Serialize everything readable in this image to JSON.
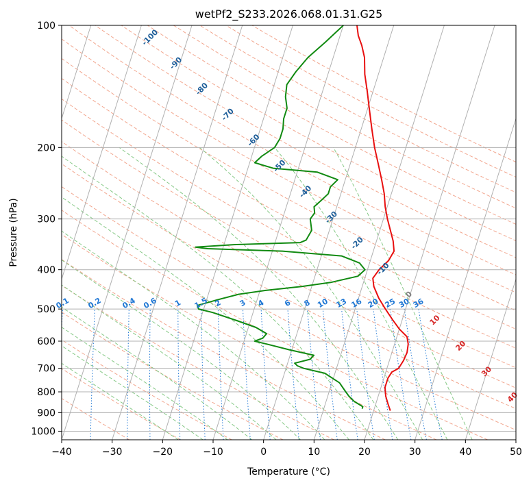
{
  "chart_data": {
    "type": "line",
    "title": "wetPf2_S233.2026.068.01.31.G25",
    "xlabel": "Temperature (°C)",
    "ylabel": "Pressure (hPa)",
    "xlim": [
      -40,
      50
    ],
    "ylim": [
      1050,
      100
    ],
    "y_scale": "log",
    "x_ticks": [
      -40,
      -30,
      -20,
      -10,
      0,
      10,
      20,
      30,
      40,
      50
    ],
    "y_ticks": [
      100,
      200,
      300,
      400,
      500,
      600,
      700,
      800,
      900,
      1000
    ],
    "grid": true,
    "skew_t": true,
    "series": [
      {
        "role": "temperature",
        "color": "#e81010",
        "points": [
          [
            23.3,
            890
          ],
          [
            22.5,
            860
          ],
          [
            21.5,
            820
          ],
          [
            20.8,
            780
          ],
          [
            20.8,
            740
          ],
          [
            21.2,
            715
          ],
          [
            22.3,
            700
          ],
          [
            22.8,
            670
          ],
          [
            23.0,
            640
          ],
          [
            22.7,
            610
          ],
          [
            22.0,
            585
          ],
          [
            20.0,
            560
          ],
          [
            18.0,
            530
          ],
          [
            16.0,
            500
          ],
          [
            14.0,
            470
          ],
          [
            12.3,
            440
          ],
          [
            11.6,
            420
          ],
          [
            12.3,
            400
          ],
          [
            13.6,
            380
          ],
          [
            14.1,
            360
          ],
          [
            13.3,
            340
          ],
          [
            12.1,
            320
          ],
          [
            10.8,
            300
          ],
          [
            9.6,
            280
          ],
          [
            8.6,
            260
          ],
          [
            7.2,
            240
          ],
          [
            5.6,
            220
          ],
          [
            3.8,
            200
          ],
          [
            2.1,
            180
          ],
          [
            0.3,
            160
          ],
          [
            -1.2,
            145
          ],
          [
            -2.7,
            132
          ],
          [
            -3.8,
            120
          ],
          [
            -5.1,
            112
          ],
          [
            -6.4,
            106
          ],
          [
            -7.3,
            100
          ]
        ]
      },
      {
        "role": "dewpoint",
        "color": "#118a11",
        "points": [
          [
            17.6,
            880
          ],
          [
            17.6,
            870
          ],
          [
            16.8,
            860
          ],
          [
            15.6,
            845
          ],
          [
            14.2,
            820
          ],
          [
            13.3,
            800
          ],
          [
            11.5,
            760
          ],
          [
            8.0,
            720
          ],
          [
            3.5,
            700
          ],
          [
            2.1,
            690
          ],
          [
            1.4,
            680
          ],
          [
            4.2,
            665
          ],
          [
            4.7,
            650
          ],
          [
            -0.5,
            630
          ],
          [
            -5.3,
            610
          ],
          [
            -7.9,
            600
          ],
          [
            -6.5,
            590
          ],
          [
            -6.0,
            575
          ],
          [
            -8.5,
            555
          ],
          [
            -12.5,
            535
          ],
          [
            -18.0,
            510
          ],
          [
            -21.0,
            500
          ],
          [
            -21.5,
            490
          ],
          [
            -18.0,
            475
          ],
          [
            -14.0,
            460
          ],
          [
            -9.0,
            450
          ],
          [
            -2.0,
            440
          ],
          [
            3.5,
            430
          ],
          [
            8.5,
            415
          ],
          [
            9.5,
            400
          ],
          [
            8.0,
            385
          ],
          [
            4.0,
            370
          ],
          [
            -8.0,
            360
          ],
          [
            -23.0,
            355
          ],
          [
            -25.5,
            352
          ],
          [
            -18.0,
            347
          ],
          [
            -5.0,
            343
          ],
          [
            -4.0,
            338
          ],
          [
            -3.5,
            320
          ],
          [
            -4.5,
            300
          ],
          [
            -4.0,
            290
          ],
          [
            -4.5,
            280
          ],
          [
            -3.5,
            270
          ],
          [
            -2.5,
            260
          ],
          [
            -2.5,
            250
          ],
          [
            -1.5,
            240
          ],
          [
            -6.0,
            230
          ],
          [
            -15.0,
            225
          ],
          [
            -19.0,
            218
          ],
          [
            -18.0,
            210
          ],
          [
            -16.0,
            200
          ],
          [
            -15.5,
            190
          ],
          [
            -15.5,
            180
          ],
          [
            -16.0,
            170
          ],
          [
            -16.0,
            160
          ],
          [
            -17.0,
            150
          ],
          [
            -17.5,
            140
          ],
          [
            -16.5,
            130
          ],
          [
            -15.0,
            120
          ],
          [
            -12.5,
            110
          ],
          [
            -10.0,
            100
          ]
        ]
      }
    ],
    "dry_adiabat_labels": [
      "-100",
      "-90",
      "-80",
      "-70",
      "-60",
      "-50",
      "-40",
      "-30",
      "-20",
      "-10",
      "0",
      "10",
      "20",
      "30",
      "40"
    ],
    "mixing_ratio_labels": [
      "0.1",
      "0.2",
      "0.4",
      "0.6",
      "1",
      "1.5",
      "2",
      "3",
      "4",
      "6",
      "8",
      "10",
      "13",
      "16",
      "20",
      "25",
      "30",
      "36"
    ],
    "mixing_ratio_values": [
      0.1,
      0.2,
      0.4,
      0.6,
      1,
      1.5,
      2,
      3,
      4,
      6,
      8,
      10,
      13,
      16,
      20,
      25,
      30,
      36
    ],
    "colors": {
      "dry_adiabat": "#f2a68e",
      "moist_adiabat": "#86c986",
      "mixing_ratio": "#1f77d4",
      "grid": "#b0b0b0",
      "label_cold": "#1f5f9a",
      "label_warm": "#d62828",
      "label_zero": "#808080",
      "dry_adiabat_outline": "#d9c2a6"
    }
  }
}
